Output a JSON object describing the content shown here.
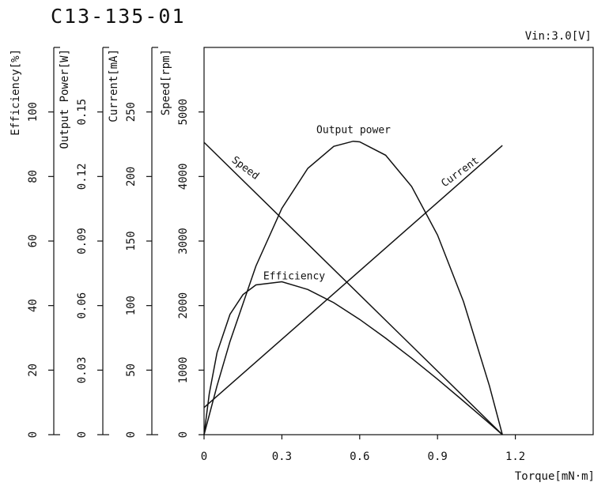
{
  "chart_data": {
    "type": "line",
    "title": "C13-135-01",
    "subtitle": "Vin:3.0[V]",
    "x_label": "Torque[mN·m]",
    "xlim": [
      0,
      1.5
    ],
    "xticks": [
      0,
      0.3,
      0.6,
      0.9,
      1.2
    ],
    "y_axes": [
      {
        "label": "Efficiency[%]",
        "lim": [
          0,
          120
        ],
        "ticks": [
          0,
          20,
          40,
          60,
          80,
          100
        ]
      },
      {
        "label": "Output Power[W]",
        "lim": [
          0,
          0.18
        ],
        "ticks": [
          0,
          0.03,
          0.06,
          0.09,
          0.12,
          0.15
        ]
      },
      {
        "label": "Current[mA]",
        "lim": [
          0,
          300
        ],
        "ticks": [
          0,
          50,
          100,
          150,
          200,
          250
        ]
      },
      {
        "label": "Speed[rpm]",
        "lim": [
          0,
          6000
        ],
        "ticks": [
          0,
          1000,
          2000,
          3000,
          4000,
          5000
        ]
      }
    ],
    "series": [
      {
        "name": "Speed",
        "color": "#111111",
        "axis": 3,
        "x": [
          0,
          1.15
        ],
        "values": [
          4530,
          0
        ]
      },
      {
        "name": "Current",
        "color": "#111111",
        "axis": 2,
        "x": [
          0,
          1.15
        ],
        "values": [
          21,
          224
        ]
      },
      {
        "name": "Output power",
        "color": "#111111",
        "axis": 1,
        "x": [
          0,
          0.05,
          0.1,
          0.2,
          0.3,
          0.4,
          0.5,
          0.575,
          0.6,
          0.7,
          0.8,
          0.9,
          1.0,
          1.1,
          1.15
        ],
        "values": [
          0,
          0.0227,
          0.0433,
          0.0784,
          0.1052,
          0.1238,
          0.134,
          0.1364,
          0.1361,
          0.1299,
          0.1154,
          0.0928,
          0.0619,
          0.0227,
          0
        ]
      },
      {
        "name": "Efficiency",
        "color": "#111111",
        "axis": 0,
        "x": [
          0,
          0.02,
          0.05,
          0.1,
          0.15,
          0.2,
          0.3,
          0.4,
          0.5,
          0.6,
          0.7,
          0.8,
          0.9,
          1.0,
          1.1,
          1.15
        ],
        "values": [
          0,
          12.7,
          25.4,
          37.3,
          43.4,
          46.4,
          47.4,
          45.0,
          40.9,
          35.7,
          29.9,
          23.7,
          17.2,
          10.4,
          3.5,
          0
        ]
      }
    ]
  }
}
